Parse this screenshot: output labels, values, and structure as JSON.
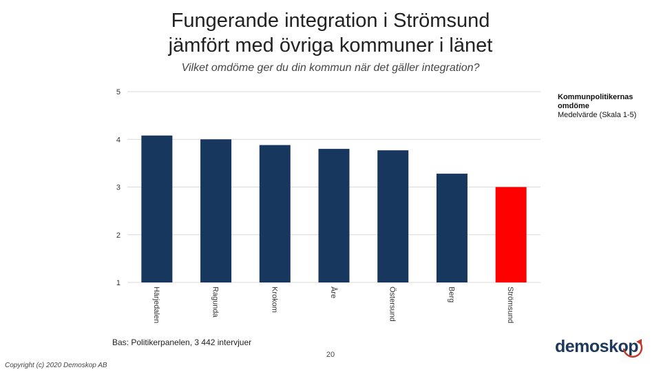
{
  "title_lines": [
    "Fungerande integration i Strömsund",
    "jämfört med övriga kommuner i länet"
  ],
  "subtitle": "Vilket omdöme ger du din kommun när det gäller integration?",
  "legend": {
    "line1": "Kommunpolitikernas omdöme",
    "line2": "Medelvärde (Skala 1-5)"
  },
  "base_note": "Bas: Politikerpanelen, 3 442 intervjuer",
  "page_number": "20",
  "copyright": "Copyright (c) 2020 Demoskop AB",
  "logo_text": "demoskop",
  "colors": {
    "bar": "#17375e",
    "highlight": "#ff0000",
    "grid": "#d9d9d9",
    "logo_arrow": "#c0392b"
  },
  "chart_data": {
    "type": "bar",
    "categories": [
      "Härjedalen",
      "Ragunda",
      "Krokom",
      "Åre",
      "Östersund",
      "Berg",
      "Strömsund"
    ],
    "values": [
      4.08,
      4.0,
      3.88,
      3.8,
      3.77,
      3.28,
      3.0
    ],
    "highlight_category": "Strömsund",
    "ylim": [
      1,
      5
    ],
    "yticks": [
      1,
      2,
      3,
      4,
      5
    ],
    "grid": true,
    "legend_position": "top-right"
  }
}
